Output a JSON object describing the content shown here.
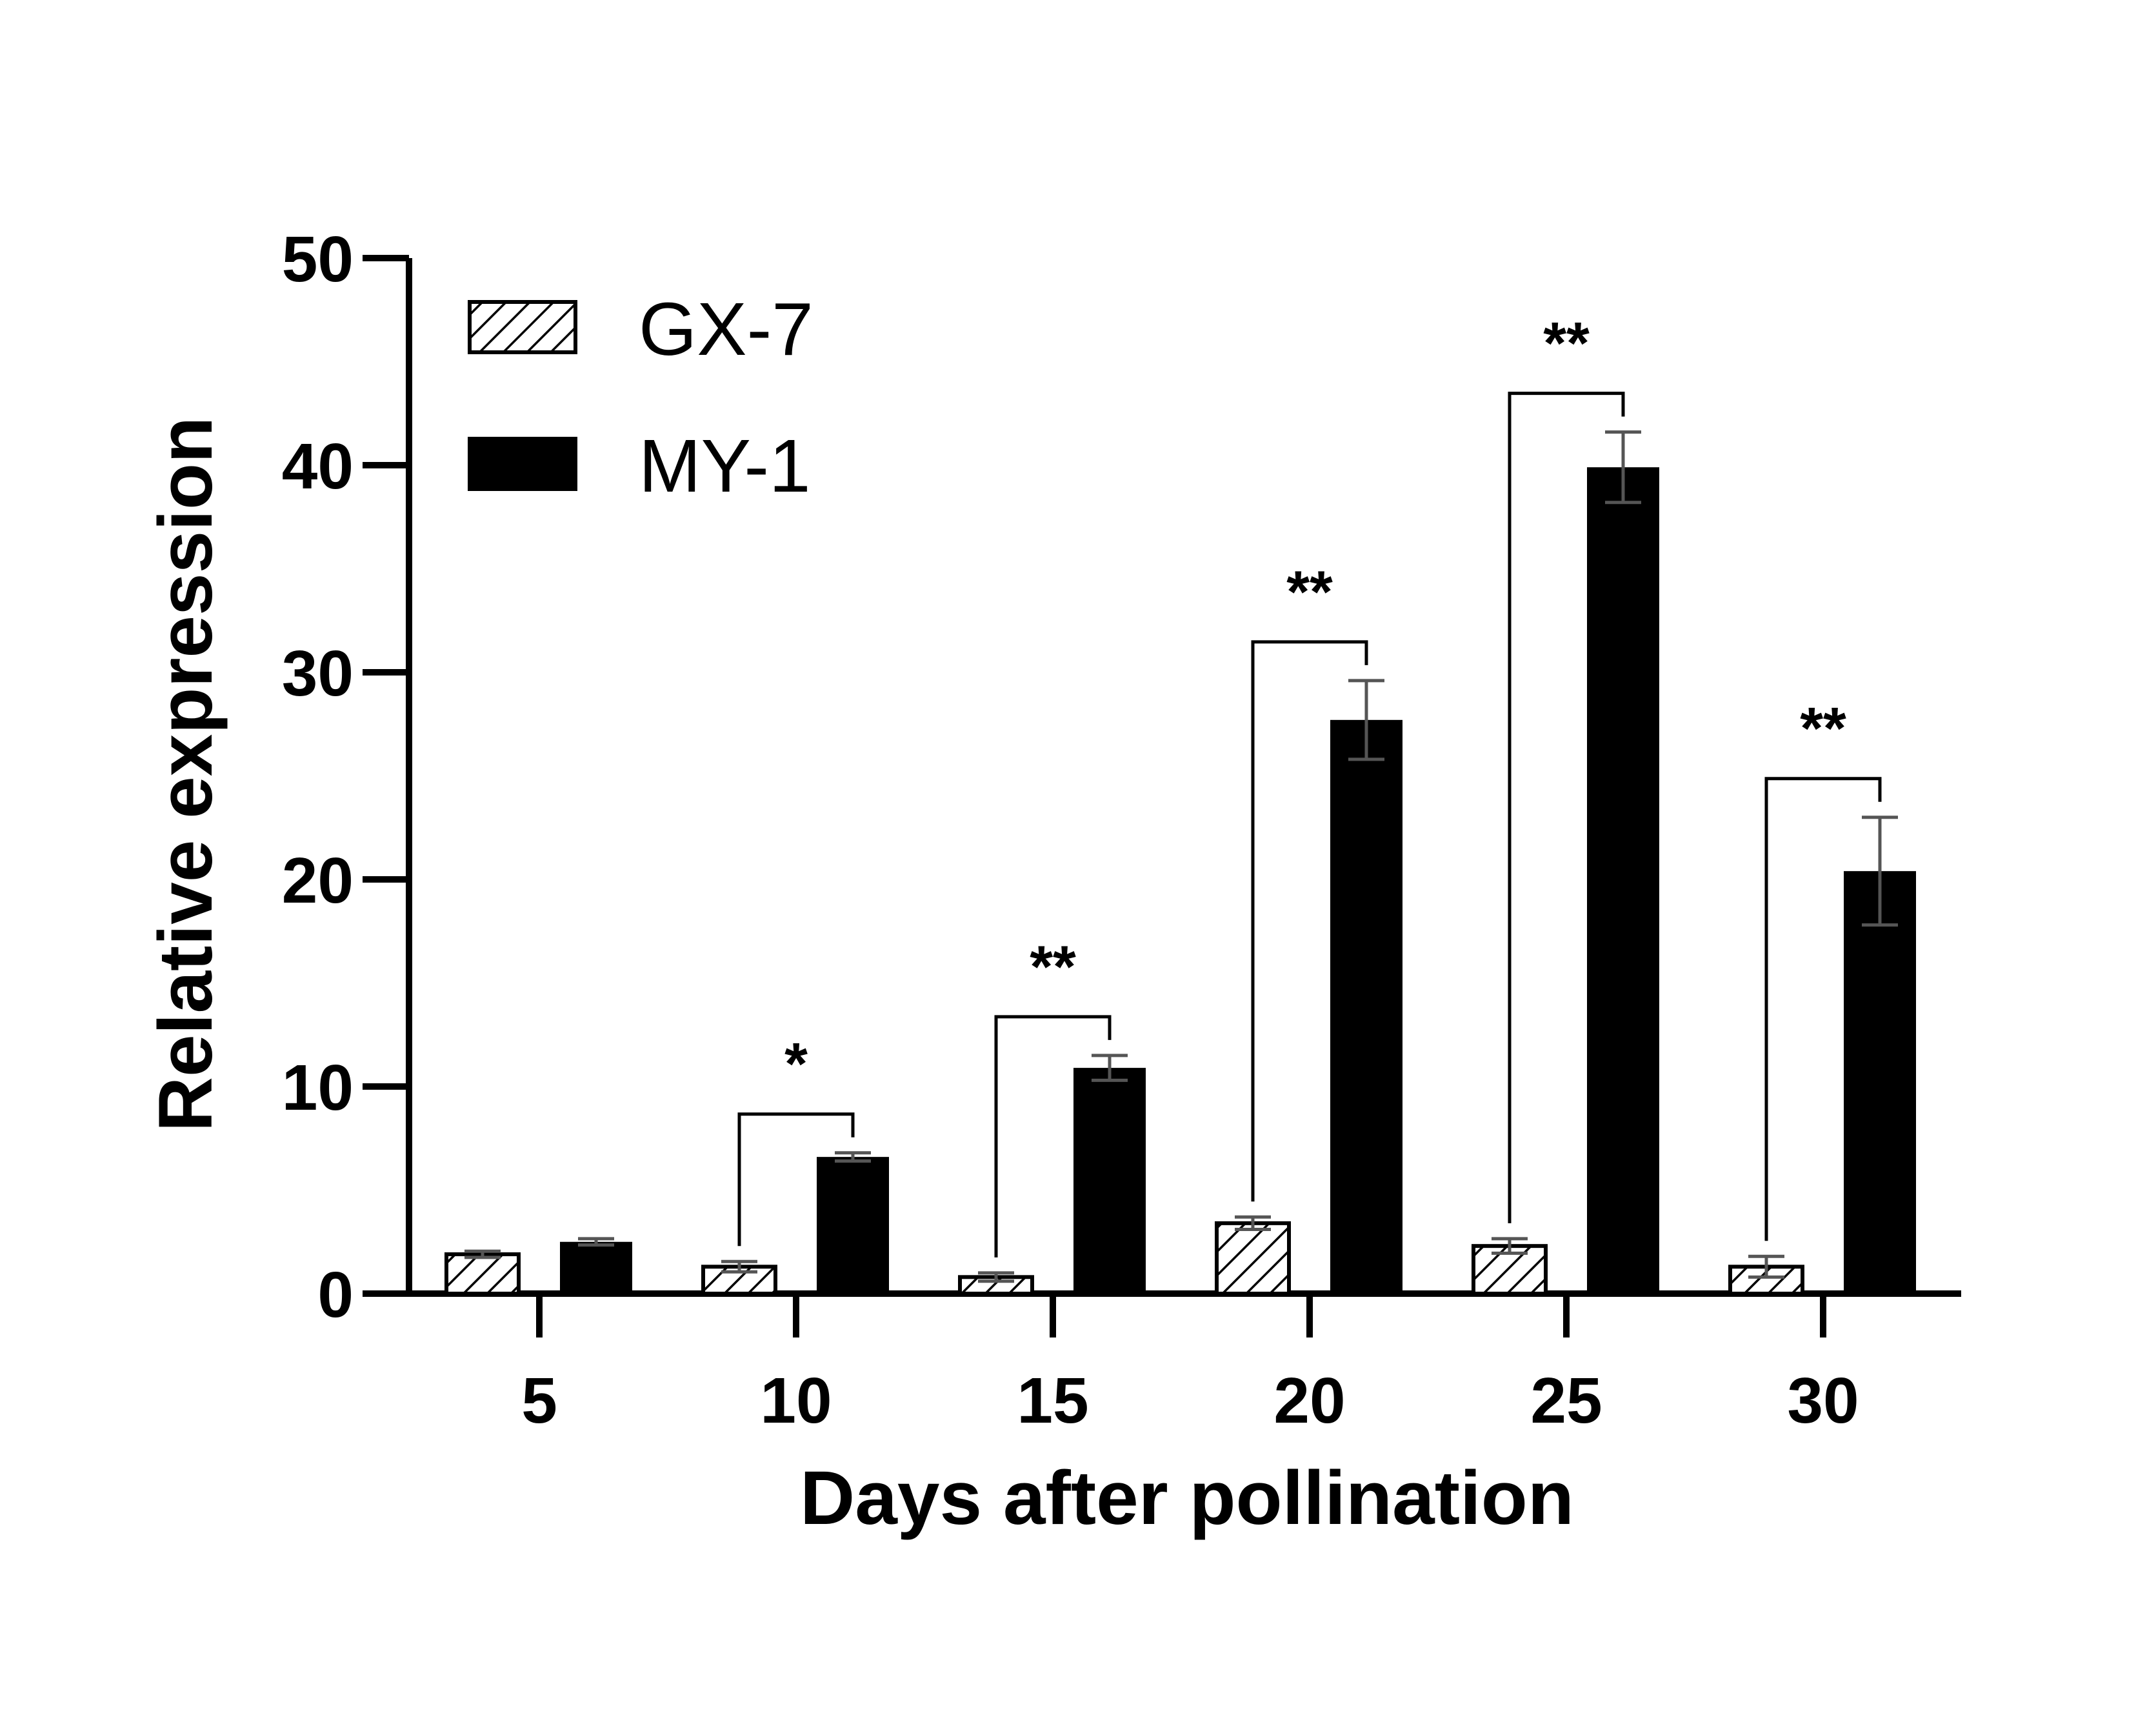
{
  "chart_data": {
    "type": "bar",
    "xlabel": "Days after pollination",
    "ylabel": "Relative expression",
    "categories": [
      "5",
      "10",
      "15",
      "20",
      "25",
      "30"
    ],
    "ylim": [
      0,
      50
    ],
    "yticks": [
      "0",
      "10",
      "20",
      "30",
      "40",
      "50"
    ],
    "series": [
      {
        "name": "GX-7",
        "fill": "hatched",
        "values": [
          1.9,
          1.3,
          0.8,
          3.4,
          2.3,
          1.3
        ],
        "errors": [
          0.15,
          0.25,
          0.2,
          0.3,
          0.35,
          0.5
        ]
      },
      {
        "name": "MY-1",
        "fill": "solid",
        "values": [
          2.5,
          6.6,
          10.9,
          27.7,
          39.9,
          20.4
        ],
        "errors": [
          0.15,
          0.2,
          0.6,
          1.9,
          1.7,
          2.6
        ]
      }
    ],
    "significance": [
      "",
      "*",
      "**",
      "**",
      "**",
      "**"
    ],
    "legend_position": "top-left",
    "grid": false,
    "colors": {
      "bar_solid": "#000000",
      "hatch": "#000000",
      "error_bar": "#555555",
      "axis": "#000000"
    }
  }
}
